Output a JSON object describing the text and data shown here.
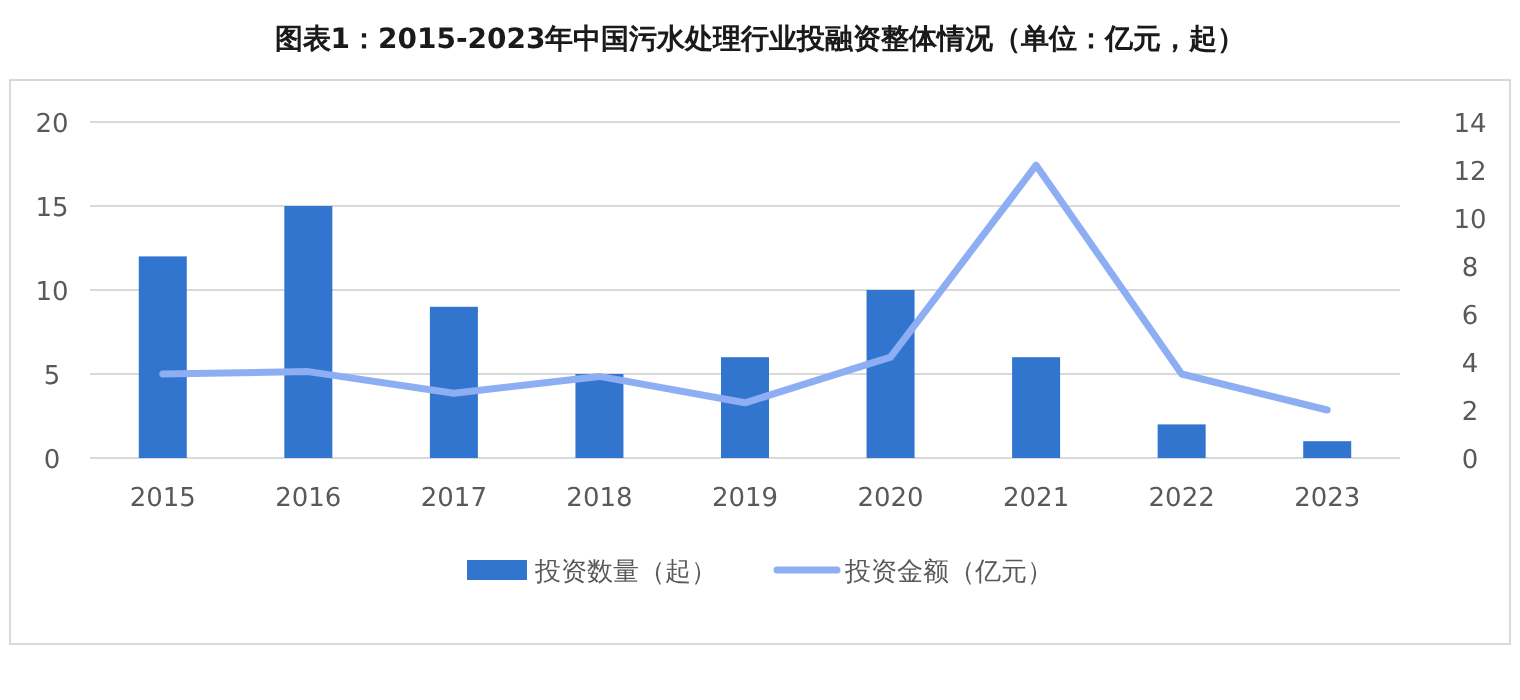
{
  "chart_data": {
    "type": "bar",
    "title": "图表1：2015-2023年中国污水处理行业投融资整体情况（单位：亿元，起）",
    "categories": [
      "2015",
      "2016",
      "2017",
      "2018",
      "2019",
      "2020",
      "2021",
      "2022",
      "2023"
    ],
    "series": [
      {
        "name": "投资数量（起）",
        "color": "#3275cf",
        "values": [
          12,
          15,
          9,
          5,
          6,
          10,
          6,
          2,
          1
        ]
      },
      {
        "name": "投资金额（亿元）",
        "type": "line",
        "axis": "y2",
        "color": "#8eaef4",
        "values": [
          3.5,
          3.6,
          2.7,
          3.4,
          2.3,
          4.2,
          12.2,
          3.5,
          2.0
        ]
      }
    ],
    "ylim": [
      0,
      20
    ],
    "yticks": [
      0,
      5,
      10,
      15,
      20
    ],
    "y2lim": [
      0,
      14
    ],
    "y2ticks": [
      0,
      2,
      4,
      6,
      8,
      10,
      12,
      14
    ],
    "grid": "y",
    "legend": "bottom",
    "marker": "none",
    "line_style": "solid"
  }
}
